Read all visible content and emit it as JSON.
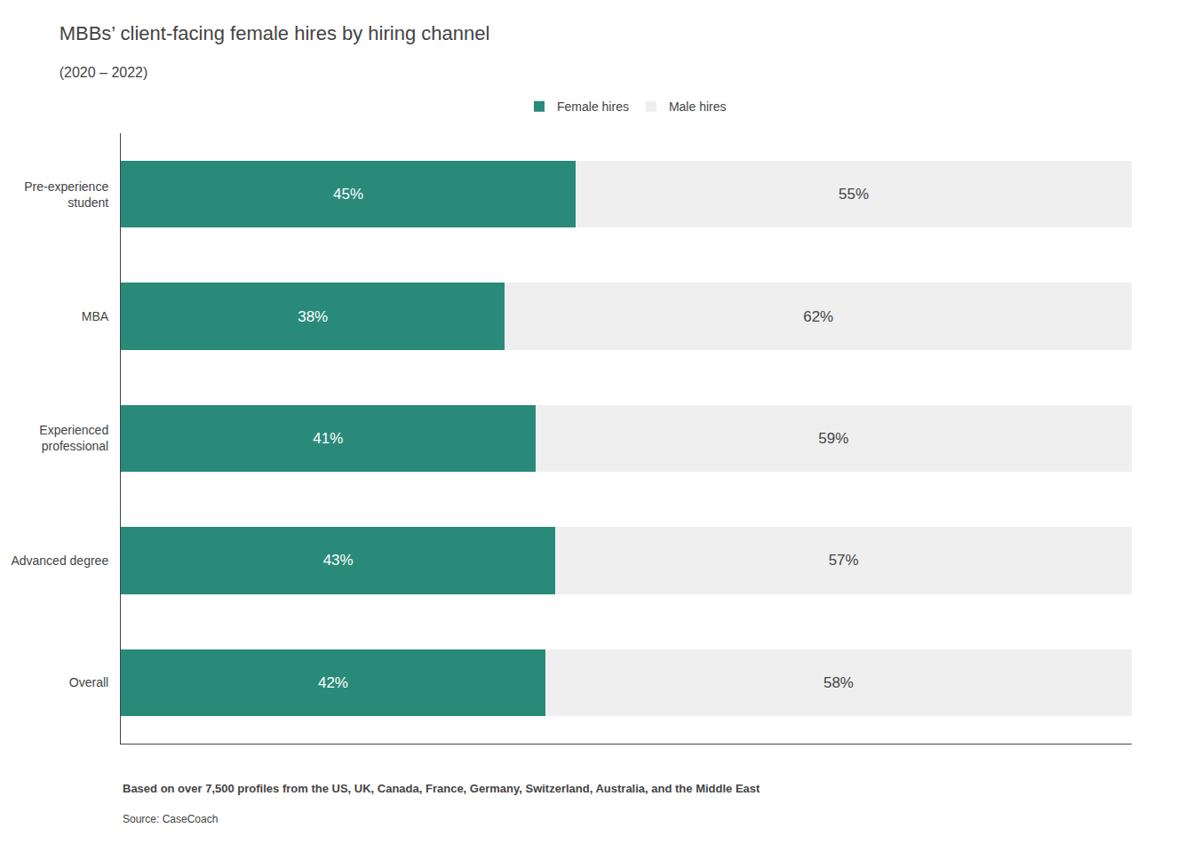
{
  "chart_data": {
    "type": "bar",
    "orientation": "horizontal",
    "stacked": true,
    "title": "MBBs’ client-facing female hires by hiring channel",
    "subtitle": "(2020 – 2022)",
    "categories": [
      "Pre-experience\nstudent",
      "MBA",
      "Experienced\nprofessional",
      "Advanced degree",
      "Overall"
    ],
    "series": [
      {
        "name": "Female hires",
        "color": "#2a8a7a",
        "values": [
          45,
          38,
          41,
          43,
          42
        ],
        "value_labels": [
          "45%",
          "38%",
          "41%",
          "43%",
          "42%"
        ]
      },
      {
        "name": "Male hires",
        "color": "#efefef",
        "values": [
          55,
          62,
          59,
          57,
          58
        ],
        "value_labels": [
          "55%",
          "62%",
          "59%",
          "57%",
          "58%"
        ]
      }
    ],
    "xlim": [
      0,
      100
    ],
    "tick_labels": "y",
    "data_labels": true,
    "grid": false,
    "legend": "top",
    "annotations": [
      "Based on over 7,500 profiles from the US, UK, Canada, France, Germany, Switzerland, Australia, and the Middle East",
      "Source: CaseCoach"
    ]
  }
}
